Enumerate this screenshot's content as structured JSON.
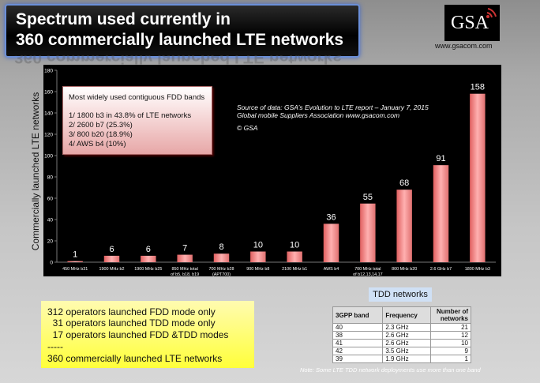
{
  "title": {
    "line1": "Spectrum used currently in",
    "line2": "360 commercially launched LTE networks"
  },
  "logo": {
    "text": "GSA",
    "url": "www.gsacom.com"
  },
  "legend_box": {
    "heading": "Most widely used contiguous FDD bands",
    "items": [
      "1/ 1800 b3 in 43.8% of LTE networks",
      "2/ 2600 b7 (25.3%)",
      "3/   800 b20 (18.9%)",
      "4/ AWS b4 (10%)"
    ]
  },
  "source": {
    "line1": "Source of data: GSA’s Evolution to LTE report – January 7, 2015",
    "line2": "Global mobile Suppliers Association www.gsacom.com",
    "line3": "© GSA"
  },
  "chart_data": {
    "type": "bar",
    "ylabel": "Commercially launched LTE networks",
    "xlabel": "",
    "ylim": [
      0,
      180
    ],
    "yticks": [
      0,
      20,
      40,
      60,
      80,
      100,
      120,
      140,
      160,
      180
    ],
    "categories": [
      [
        "450 MHz b31"
      ],
      [
        "1900 MHz b2"
      ],
      [
        "1900 MHz b25"
      ],
      [
        "850 MHz total",
        "of b5, b18, b19"
      ],
      [
        "700 MHz b28",
        "(APT700)"
      ],
      [
        "900 MHz b8"
      ],
      [
        "2100 MHz b1"
      ],
      [
        "AWS b4"
      ],
      [
        "700 MHz total",
        "of b12,13,14,17"
      ],
      [
        "800 MHz b20"
      ],
      [
        "2.6 GHz b7"
      ],
      [
        "1800 MHz b3"
      ]
    ],
    "values": [
      1,
      6,
      6,
      7,
      8,
      10,
      10,
      36,
      55,
      68,
      91,
      158
    ],
    "data_labels": [
      "1",
      "6",
      "6",
      "7",
      "8",
      "10",
      "10",
      "36",
      "55",
      "68",
      "91",
      "158"
    ],
    "bar_color": "#ff9a9a",
    "background": "#000000",
    "grid": false
  },
  "summary": {
    "lines": [
      "312 operators launched FDD mode only",
      "  31 operators launched TDD mode only",
      "  17 operators launched FDD &TDD modes",
      "-----",
      "360 commercially launched LTE networks"
    ]
  },
  "tdd": {
    "title": "TDD networks",
    "headers": [
      "3GPP band",
      "Frequency",
      "Number of networks"
    ],
    "rows": [
      [
        "40",
        "2.3 GHz",
        "21"
      ],
      [
        "38",
        "2.6 GHz",
        "12"
      ],
      [
        "41",
        "2.6 GHz",
        "10"
      ],
      [
        "42",
        "3.5 GHz",
        "9"
      ],
      [
        "39",
        "1.9 GHz",
        "1"
      ]
    ],
    "note": "Note: Some LTE TDD network deployments use more than one band"
  }
}
